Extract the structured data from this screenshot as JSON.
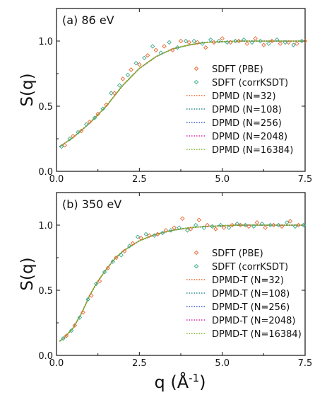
{
  "figure": {
    "xlabel_main": "q (Å",
    "xlabel_sup": "-1",
    "xlabel_close": ")"
  },
  "chart_data": [
    {
      "type": "scatter",
      "title": "(a) 86 eV",
      "xlabel": "",
      "ylabel": "S(q)",
      "xlim": [
        0,
        7.5
      ],
      "ylim": [
        0,
        1.25
      ],
      "xticks": [
        "0.0",
        "2.5",
        "5.0",
        "7.5"
      ],
      "yticks": [
        "0.0",
        "0.5",
        "1.0"
      ],
      "grid": false,
      "legend_position": "lower-right",
      "series": [
        {
          "name": "SDFT (PBE)",
          "kind": "points",
          "marker": "diamond",
          "color": "#e8662e",
          "x": [
            0.25,
            0.5,
            0.75,
            1.0,
            1.25,
            1.5,
            1.75,
            2.0,
            2.25,
            2.5,
            2.75,
            3.0,
            3.25,
            3.5,
            3.75,
            4.0,
            4.25,
            4.5,
            4.75,
            5.0,
            5.25,
            5.5,
            5.75,
            6.0,
            6.25,
            6.5,
            6.75,
            7.0,
            7.25,
            7.5
          ],
          "y": [
            0.2,
            0.27,
            0.31,
            0.38,
            0.44,
            0.51,
            0.6,
            0.71,
            0.78,
            0.82,
            0.89,
            0.93,
            0.96,
            0.93,
            1.0,
            0.99,
            0.99,
            0.95,
            0.99,
            1.02,
            0.99,
            1.0,
            0.98,
            1.02,
            0.97,
            1.0,
            0.98,
            0.99,
            0.98,
            1.0
          ]
        },
        {
          "name": "SDFT (corrKSDT)",
          "kind": "points",
          "marker": "diamond",
          "color": "#3aa88c",
          "x": [
            0.15,
            0.4,
            0.65,
            0.9,
            1.15,
            1.4,
            1.65,
            1.9,
            2.15,
            2.4,
            2.65,
            2.9,
            3.15,
            3.4,
            3.65,
            3.9,
            4.15,
            4.4,
            4.65,
            4.9,
            5.15,
            5.4,
            5.65,
            5.9,
            6.15,
            6.4,
            6.65,
            6.9,
            7.15,
            7.4
          ],
          "y": [
            0.19,
            0.25,
            0.3,
            0.36,
            0.41,
            0.48,
            0.6,
            0.66,
            0.74,
            0.83,
            0.87,
            0.96,
            0.91,
            0.99,
            0.95,
            1.0,
            1.0,
            0.98,
            1.01,
            1.0,
            0.99,
            1.0,
            1.01,
            0.99,
            1.0,
            0.98,
            1.01,
            0.99,
            0.97,
            1.0
          ]
        },
        {
          "name": "DPMD (N=32)",
          "kind": "line",
          "dash": "dotted",
          "color": "#e8662e",
          "x": [
            0.1,
            0.5,
            1.0,
            1.5,
            2.0,
            2.5,
            3.0,
            3.5,
            4.0,
            4.5,
            5.0,
            5.5,
            6.0,
            6.5,
            7.0,
            7.5
          ],
          "y": [
            0.19,
            0.26,
            0.37,
            0.5,
            0.66,
            0.79,
            0.88,
            0.94,
            0.97,
            0.99,
            0.995,
            1.0,
            1.0,
            1.0,
            1.0,
            1.0
          ]
        },
        {
          "name": "DPMD (N=108)",
          "kind": "line",
          "dash": "dotted",
          "color": "#2f8f8f",
          "x": [
            0.1,
            0.5,
            1.0,
            1.5,
            2.0,
            2.5,
            3.0,
            3.5,
            4.0,
            4.5,
            5.0,
            5.5,
            6.0,
            6.5,
            7.0,
            7.5
          ],
          "y": [
            0.19,
            0.26,
            0.37,
            0.5,
            0.66,
            0.79,
            0.88,
            0.94,
            0.97,
            0.99,
            0.995,
            1.0,
            1.0,
            1.0,
            1.0,
            1.0
          ]
        },
        {
          "name": "DPMD (N=256)",
          "kind": "line",
          "dash": "dotted",
          "color": "#3b5bc4",
          "x": [
            0.1,
            0.5,
            1.0,
            1.5,
            2.0,
            2.5,
            3.0,
            3.5,
            4.0,
            4.5,
            5.0,
            5.5,
            6.0,
            6.5,
            7.0,
            7.5
          ],
          "y": [
            0.19,
            0.26,
            0.37,
            0.5,
            0.66,
            0.79,
            0.88,
            0.94,
            0.97,
            0.99,
            0.995,
            1.0,
            1.0,
            1.0,
            1.0,
            1.0
          ]
        },
        {
          "name": "DPMD (N=2048)",
          "kind": "line",
          "dash": "dotted",
          "color": "#d12fa6",
          "x": [
            0.1,
            0.5,
            1.0,
            1.5,
            2.0,
            2.5,
            3.0,
            3.5,
            4.0,
            4.5,
            5.0,
            5.5,
            6.0,
            6.5,
            7.0,
            7.5
          ],
          "y": [
            0.19,
            0.26,
            0.37,
            0.5,
            0.66,
            0.79,
            0.88,
            0.94,
            0.97,
            0.99,
            0.995,
            1.0,
            1.0,
            1.0,
            1.0,
            1.0
          ]
        },
        {
          "name": "DPMD (N=16384)",
          "kind": "line",
          "dash": "dotted",
          "color": "#7cb518",
          "x": [
            0.1,
            0.5,
            1.0,
            1.5,
            2.0,
            2.5,
            3.0,
            3.5,
            4.0,
            4.5,
            5.0,
            5.5,
            6.0,
            6.5,
            7.0,
            7.5
          ],
          "y": [
            0.19,
            0.26,
            0.37,
            0.5,
            0.66,
            0.79,
            0.88,
            0.94,
            0.97,
            0.99,
            0.995,
            1.0,
            1.0,
            1.0,
            1.0,
            1.0
          ]
        }
      ]
    },
    {
      "type": "scatter",
      "title": "(b) 350 eV",
      "xlabel": "q (Å-1)",
      "ylabel": "S(q)",
      "xlim": [
        0,
        7.5
      ],
      "ylim": [
        0,
        1.25
      ],
      "xticks": [
        "0.0",
        "2.5",
        "5.0",
        "7.5"
      ],
      "yticks": [
        "0.0",
        "0.5",
        "1.0"
      ],
      "grid": false,
      "legend_position": "lower-right",
      "series": [
        {
          "name": "SDFT (PBE)",
          "kind": "points",
          "marker": "diamond",
          "color": "#e8662e",
          "x": [
            0.3,
            0.55,
            0.8,
            1.05,
            1.3,
            1.55,
            1.8,
            2.05,
            2.3,
            2.55,
            2.8,
            3.05,
            3.3,
            3.55,
            3.8,
            4.05,
            4.3,
            4.55,
            4.8,
            5.05,
            5.3,
            5.55,
            5.8,
            6.05,
            6.3,
            6.55,
            6.8,
            7.05,
            7.3
          ],
          "y": [
            0.15,
            0.23,
            0.33,
            0.46,
            0.57,
            0.67,
            0.75,
            0.8,
            0.86,
            0.9,
            0.92,
            0.93,
            0.96,
            0.98,
            1.05,
            0.97,
            1.04,
            1.0,
            0.97,
            0.98,
            1.0,
            1.0,
            0.99,
            1.02,
            0.98,
            1.0,
            0.99,
            1.03,
            1.0
          ]
        },
        {
          "name": "SDFT (corrKSDT)",
          "kind": "points",
          "marker": "diamond",
          "color": "#3aa88c",
          "x": [
            0.2,
            0.45,
            0.7,
            0.95,
            1.2,
            1.45,
            1.7,
            1.95,
            2.2,
            2.45,
            2.7,
            2.95,
            3.2,
            3.45,
            3.7,
            3.95,
            4.2,
            4.45,
            4.7,
            4.95,
            5.2,
            5.45,
            5.7,
            5.95,
            6.2,
            6.45,
            6.7,
            6.95,
            7.2,
            7.45
          ],
          "y": [
            0.13,
            0.19,
            0.29,
            0.43,
            0.55,
            0.64,
            0.72,
            0.77,
            0.84,
            0.91,
            0.93,
            0.92,
            0.94,
            0.96,
            0.98,
            0.96,
            1.0,
            0.98,
            0.99,
            1.0,
            0.98,
            1.01,
            1.0,
            0.99,
            1.01,
            1.0,
            1.0,
            1.02,
            0.99,
            1.0
          ]
        },
        {
          "name": "DPMD-T (N=32)",
          "kind": "line",
          "dash": "dotted",
          "color": "#e8662e",
          "x": [
            0.1,
            0.25,
            0.5,
            0.75,
            1.0,
            1.25,
            1.5,
            1.75,
            2.0,
            2.5,
            3.0,
            3.5,
            4.0,
            4.5,
            5.0,
            5.5,
            6.0,
            6.5,
            7.0,
            7.5
          ],
          "y": [
            0.11,
            0.14,
            0.21,
            0.32,
            0.46,
            0.57,
            0.66,
            0.74,
            0.8,
            0.88,
            0.93,
            0.96,
            0.98,
            0.99,
            0.995,
            1.0,
            1.0,
            1.0,
            1.0,
            1.0
          ]
        },
        {
          "name": "DPMD-T (N=108)",
          "kind": "line",
          "dash": "dotted",
          "color": "#2f8f8f",
          "x": [
            0.1,
            0.25,
            0.5,
            0.75,
            1.0,
            1.25,
            1.5,
            1.75,
            2.0,
            2.5,
            3.0,
            3.5,
            4.0,
            4.5,
            5.0,
            5.5,
            6.0,
            6.5,
            7.0,
            7.5
          ],
          "y": [
            0.11,
            0.14,
            0.21,
            0.32,
            0.46,
            0.57,
            0.66,
            0.74,
            0.8,
            0.88,
            0.93,
            0.96,
            0.98,
            0.99,
            0.995,
            1.0,
            1.0,
            1.0,
            1.0,
            1.0
          ]
        },
        {
          "name": "DPMD-T (N=256)",
          "kind": "line",
          "dash": "dotted",
          "color": "#3b5bc4",
          "x": [
            0.1,
            0.25,
            0.5,
            0.75,
            1.0,
            1.25,
            1.5,
            1.75,
            2.0,
            2.5,
            3.0,
            3.5,
            4.0,
            4.5,
            5.0,
            5.5,
            6.0,
            6.5,
            7.0,
            7.5
          ],
          "y": [
            0.11,
            0.14,
            0.21,
            0.32,
            0.46,
            0.57,
            0.66,
            0.74,
            0.8,
            0.88,
            0.93,
            0.96,
            0.98,
            0.99,
            0.995,
            1.0,
            1.0,
            1.0,
            1.0,
            1.0
          ]
        },
        {
          "name": "DPMD-T (N=2048)",
          "kind": "line",
          "dash": "dotted",
          "color": "#d12fa6",
          "x": [
            0.1,
            0.25,
            0.5,
            0.75,
            1.0,
            1.25,
            1.5,
            1.75,
            2.0,
            2.5,
            3.0,
            3.5,
            4.0,
            4.5,
            5.0,
            5.5,
            6.0,
            6.5,
            7.0,
            7.5
          ],
          "y": [
            0.11,
            0.14,
            0.21,
            0.32,
            0.46,
            0.57,
            0.66,
            0.74,
            0.8,
            0.88,
            0.93,
            0.96,
            0.98,
            0.99,
            0.995,
            1.0,
            1.0,
            1.0,
            1.0,
            1.0
          ]
        },
        {
          "name": "DPMD-T (N=16384)",
          "kind": "line",
          "dash": "dotted",
          "color": "#7cb518",
          "x": [
            0.1,
            0.25,
            0.5,
            0.75,
            1.0,
            1.25,
            1.5,
            1.75,
            2.0,
            2.5,
            3.0,
            3.5,
            4.0,
            4.5,
            5.0,
            5.5,
            6.0,
            6.5,
            7.0,
            7.5
          ],
          "y": [
            0.11,
            0.14,
            0.21,
            0.32,
            0.46,
            0.57,
            0.66,
            0.74,
            0.8,
            0.88,
            0.93,
            0.96,
            0.98,
            0.99,
            0.995,
            1.0,
            1.0,
            1.0,
            1.0,
            1.0
          ]
        }
      ]
    }
  ]
}
